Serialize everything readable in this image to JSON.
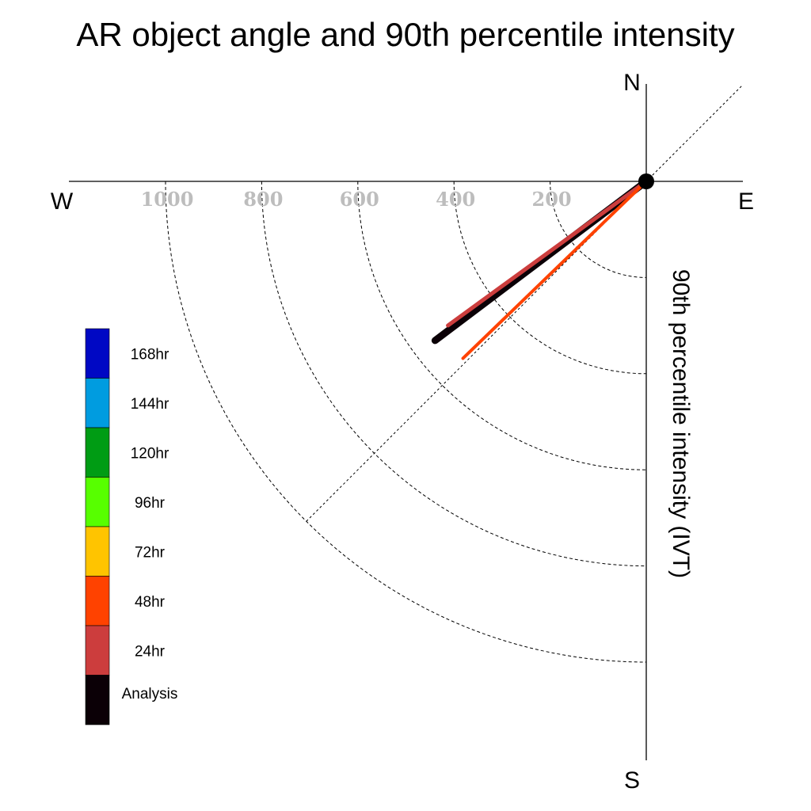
{
  "chart_data": {
    "type": "polar-vector",
    "title": "AR object angle and 90th percentile intensity",
    "ylabel": "90th percentile intensity (IVT)",
    "compass": {
      "north": "N",
      "south": "S",
      "east": "E",
      "west": "W"
    },
    "radial_ticks": [
      "200",
      "400",
      "600",
      "800",
      "1000"
    ],
    "radial_tick_values": [
      200,
      400,
      600,
      800,
      1000
    ],
    "series": [
      {
        "name": "Analysis",
        "angle_deg": 233,
        "intensity": 550,
        "color": "#0b0006"
      },
      {
        "name": "24hr",
        "angle_deg": 234,
        "intensity": 510,
        "color": "#cc3d3d"
      },
      {
        "name": "48hr",
        "angle_deg": 226,
        "intensity": 530,
        "color": "#ff4200"
      }
    ],
    "legend": [
      {
        "label": "168hr",
        "color": "#0008c4"
      },
      {
        "label": "144hr",
        "color": "#009ce0"
      },
      {
        "label": "120hr",
        "color": "#009c14"
      },
      {
        "label": "96hr",
        "color": "#57ff00"
      },
      {
        "label": "72hr",
        "color": "#ffc400"
      },
      {
        "label": "48hr",
        "color": "#ff4200"
      },
      {
        "label": "24hr",
        "color": "#cc3d3d"
      },
      {
        "label": "Analysis",
        "color": "#0b0006"
      }
    ],
    "guide_line_angle_deg": 225
  }
}
